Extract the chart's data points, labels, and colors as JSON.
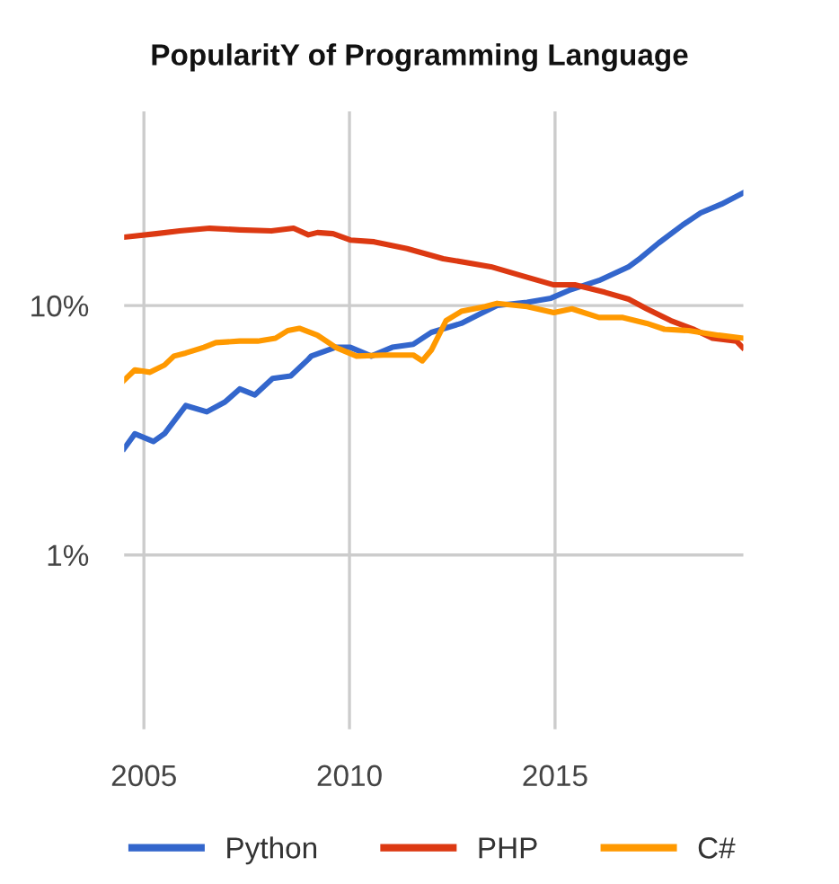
{
  "chart_data": {
    "type": "line",
    "title": "PopularitY of Programming Language",
    "xlim": [
      2004.52,
      2019.58
    ],
    "xticks": [
      2005,
      2010,
      2015
    ],
    "ylim": [
      0.2,
      60
    ],
    "yticks": [
      {
        "value": 1,
        "label": "1%"
      },
      {
        "value": 10,
        "label": "10%"
      }
    ],
    "log": "y",
    "grid": true,
    "legend": "bottom",
    "line_style": "solid",
    "series": [
      {
        "name": "Python",
        "color": "#3366cc",
        "x": [
          2004.52,
          2004.78,
          2005.23,
          2005.5,
          2006.02,
          2006.53,
          2006.97,
          2007.33,
          2007.7,
          2008.13,
          2008.57,
          2009.0,
          2009.07,
          2009.66,
          2010.02,
          2010.53,
          2011.04,
          2011.55,
          2011.99,
          2012.72,
          2013.15,
          2013.59,
          2014.32,
          2014.9,
          2015.34,
          2016.07,
          2016.79,
          2017.08,
          2017.52,
          2018.1,
          2018.54,
          2019.05,
          2019.56
        ],
        "values": [
          2.67,
          3.06,
          2.85,
          3.06,
          3.97,
          3.75,
          4.1,
          4.63,
          4.38,
          5.1,
          5.22,
          6.09,
          6.27,
          6.8,
          6.8,
          6.27,
          6.8,
          6.99,
          7.8,
          8.48,
          9.2,
          10.0,
          10.3,
          10.7,
          11.5,
          12.6,
          14.3,
          15.5,
          17.8,
          21.0,
          23.5,
          25.5,
          28.2
        ]
      },
      {
        "name": "PHP",
        "color": "#dc3912",
        "x": [
          2004.52,
          2005.3,
          2005.87,
          2006.6,
          2007.33,
          2008.1,
          2008.64,
          2009.0,
          2009.22,
          2009.6,
          2010.02,
          2010.6,
          2011.4,
          2012.28,
          2013.44,
          2014.17,
          2014.97,
          2015.48,
          2016.21,
          2016.79,
          2017.23,
          2017.81,
          2018.39,
          2018.83,
          2019.41,
          2019.56
        ],
        "values": [
          18.8,
          19.4,
          19.9,
          20.4,
          20.1,
          19.9,
          20.4,
          19.2,
          19.6,
          19.4,
          18.3,
          18.0,
          16.9,
          15.4,
          14.3,
          13.2,
          12.1,
          12.1,
          11.3,
          10.6,
          9.7,
          8.7,
          8.0,
          7.4,
          7.2,
          6.8
        ]
      },
      {
        "name": "C#",
        "color": "#ff9900",
        "x": [
          2004.52,
          2004.78,
          2005.15,
          2005.5,
          2005.73,
          2006.02,
          2006.46,
          2006.75,
          2007.33,
          2007.77,
          2008.2,
          2008.5,
          2008.78,
          2009.22,
          2009.66,
          2010.17,
          2010.83,
          2011.55,
          2011.77,
          2011.99,
          2012.35,
          2012.72,
          2013.3,
          2013.59,
          2014.32,
          2014.97,
          2015.41,
          2016.07,
          2016.65,
          2017.23,
          2017.66,
          2018.25,
          2018.98,
          2019.56
        ],
        "values": [
          5.02,
          5.52,
          5.4,
          5.77,
          6.27,
          6.45,
          6.8,
          7.1,
          7.2,
          7.2,
          7.39,
          7.93,
          8.1,
          7.6,
          6.8,
          6.27,
          6.33,
          6.33,
          6.0,
          6.62,
          8.7,
          9.47,
          9.9,
          10.2,
          9.9,
          9.36,
          9.7,
          8.95,
          8.95,
          8.48,
          8.03,
          7.93,
          7.6,
          7.4
        ]
      }
    ]
  }
}
